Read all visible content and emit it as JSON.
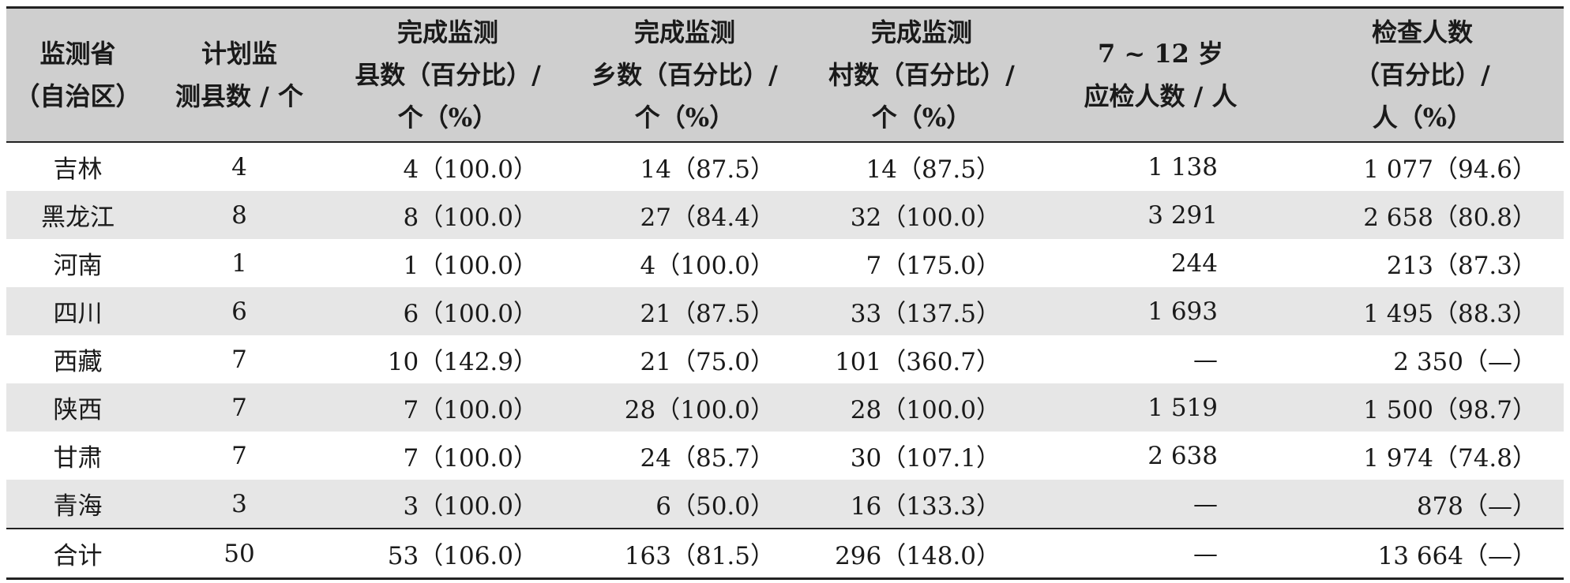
{
  "table": {
    "headers": [
      [
        "监测省",
        "（自治区）"
      ],
      [
        "计划监",
        "测县数 / 个"
      ],
      [
        "完成监测",
        "县数（百分比）/",
        "个（%）"
      ],
      [
        "完成监测",
        "乡数（百分比）/",
        "个（%）"
      ],
      [
        "完成监测",
        "村数（百分比）/",
        "个（%）"
      ],
      [
        "7 ~ 12 岁",
        "应检人数 / 人"
      ],
      [
        "检查人数",
        "（百分比）/",
        "人（%）"
      ]
    ],
    "rows": [
      [
        "吉林",
        "4",
        "4（100.0）",
        "14（87.5）",
        "14（87.5）",
        "1 138",
        "1 077（94.6）"
      ],
      [
        "黑龙江",
        "8",
        "8（100.0）",
        "27（84.4）",
        "32（100.0）",
        "3 291",
        "2 658（80.8）"
      ],
      [
        "河南",
        "1",
        "1（100.0）",
        "4（100.0）",
        "7（175.0）",
        "244",
        "213（87.3）"
      ],
      [
        "四川",
        "6",
        "6（100.0）",
        "21（87.5）",
        "33（137.5）",
        "1 693",
        "1 495（88.3）"
      ],
      [
        "西藏",
        "7",
        "10（142.9）",
        "21（75.0）",
        "101（360.7）",
        "—",
        "2 350（—）"
      ],
      [
        "陕西",
        "7",
        "7（100.0）",
        "28（100.0）",
        "28（100.0）",
        "1 519",
        "1 500（98.7）"
      ],
      [
        "甘肃",
        "7",
        "7（100.0）",
        "24（85.7）",
        "30（107.1）",
        "2 638",
        "1 974（74.8）"
      ],
      [
        "青海",
        "3",
        "3（100.0）",
        "6（50.0）",
        "16（133.3）",
        "—",
        "878（—）"
      ]
    ],
    "total": [
      "合计",
      "50",
      "53（106.0）",
      "163（81.5）",
      "296（148.0）",
      "—",
      "13 664（—）"
    ]
  }
}
